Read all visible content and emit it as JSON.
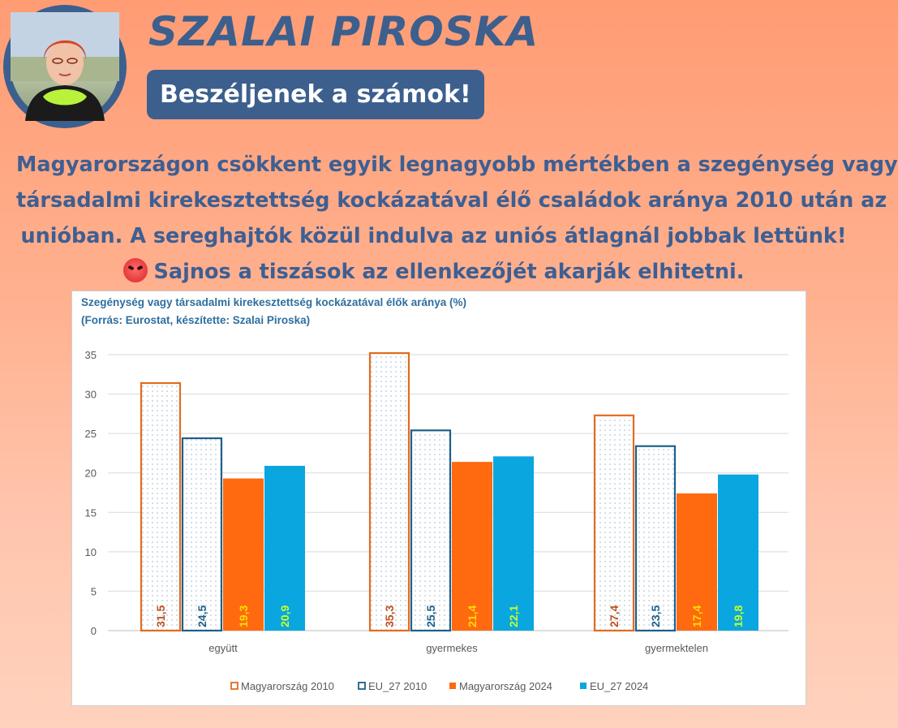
{
  "header": {
    "name": "SZALAI PIROSKA",
    "tagline": "Beszéljenek a számok!"
  },
  "message": {
    "line1": "Magyarországon csökkent egyik legnagyobb mértékben a szegénység vagy",
    "line2": "társadalmi kirekesztettség kockázatával élő családok aránya 2010 után az",
    "line3": "unióban. A sereghajtók közül indulva az uniós átlagnál jobbak lettünk!",
    "line4": "Sajnos a tiszások az ellenkezőjét akarják elhitetni."
  },
  "chart_data": {
    "type": "bar",
    "title": "Szegénység vagy társadalmi kirekesztettség kockázatával élők aránya (%)",
    "subtitle": "(Forrás: Eurostat, készítette: Szalai Piroska)",
    "categories": [
      "együtt",
      "gyermekes",
      "gyermektelen"
    ],
    "ylim": [
      0,
      35
    ],
    "yticks": [
      0,
      5,
      10,
      15,
      20,
      25,
      30,
      35
    ],
    "grid": true,
    "legend_position": "bottom",
    "series": [
      {
        "name": "Magyarország 2010",
        "values": [
          31.5,
          35.3,
          27.4
        ],
        "labels": [
          "31,5",
          "35,3",
          "27,4"
        ],
        "style": "outline",
        "color": "#e36c1e",
        "label_color": "#c0501e"
      },
      {
        "name": "EU_27 2010",
        "values": [
          24.5,
          25.5,
          23.5
        ],
        "labels": [
          "24,5",
          "25,5",
          "23,5"
        ],
        "style": "outline",
        "color": "#1f5f8b",
        "label_color": "#1f5f8b"
      },
      {
        "name": "Magyarország 2024",
        "values": [
          19.3,
          21.4,
          17.4
        ],
        "labels": [
          "19,3",
          "21,4",
          "17,4"
        ],
        "style": "solid",
        "color": "#ff6a10",
        "label_color": "#ffe100"
      },
      {
        "name": "EU_27 2024",
        "values": [
          20.9,
          22.1,
          19.8
        ],
        "labels": [
          "20,9",
          "22,1",
          "19,8"
        ],
        "style": "solid",
        "color": "#0aa6df",
        "label_color": "#c6ff2a"
      }
    ]
  }
}
